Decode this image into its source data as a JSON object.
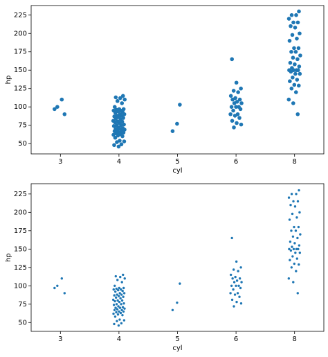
{
  "chart_data": [
    {
      "type": "strip",
      "x_label": "cyl",
      "y_label": "hp",
      "color": "#1f77b4",
      "marker_radius": 2.8,
      "categories": [
        3,
        4,
        5,
        6,
        8
      ],
      "x": [
        3,
        3,
        3,
        3,
        4,
        4,
        4,
        4,
        4,
        4,
        4,
        4,
        4,
        4,
        4,
        4,
        4,
        4,
        4,
        4,
        4,
        4,
        4,
        4,
        4,
        4,
        4,
        4,
        4,
        4,
        4,
        4,
        4,
        4,
        4,
        4,
        4,
        4,
        4,
        4,
        4,
        4,
        4,
        4,
        4,
        4,
        4,
        4,
        4,
        4,
        4,
        4,
        4,
        4,
        4,
        4,
        4,
        4,
        4,
        5,
        5,
        5,
        6,
        6,
        6,
        6,
        6,
        6,
        6,
        6,
        6,
        6,
        6,
        6,
        6,
        6,
        6,
        6,
        6,
        6,
        6,
        6,
        6,
        6,
        6,
        6,
        6,
        8,
        8,
        8,
        8,
        8,
        8,
        8,
        8,
        8,
        8,
        8,
        8,
        8,
        8,
        8,
        8,
        8,
        8,
        8,
        8,
        8,
        8,
        8,
        8,
        8,
        8,
        8,
        8,
        8,
        8,
        8,
        8,
        8,
        8,
        8,
        8,
        8,
        8,
        8,
        8
      ],
      "values": [
        97,
        110,
        100,
        90,
        46,
        48,
        49,
        52,
        53,
        54,
        58,
        60,
        61,
        62,
        63,
        64,
        65,
        65,
        67,
        67,
        68,
        69,
        70,
        70,
        71,
        72,
        74,
        75,
        75,
        76,
        78,
        79,
        80,
        80,
        81,
        83,
        84,
        85,
        86,
        87,
        88,
        88,
        90,
        90,
        92,
        93,
        94,
        95,
        95,
        96,
        97,
        97,
        100,
        105,
        108,
        110,
        112,
        113,
        115,
        77,
        67,
        103,
        72,
        76,
        78,
        81,
        85,
        88,
        90,
        90,
        95,
        97,
        100,
        100,
        100,
        105,
        105,
        107,
        110,
        110,
        112,
        115,
        120,
        122,
        125,
        133,
        165,
        90,
        105,
        110,
        120,
        125,
        129,
        130,
        135,
        137,
        140,
        145,
        145,
        148,
        150,
        150,
        150,
        150,
        153,
        155,
        158,
        160,
        165,
        167,
        170,
        175,
        175,
        180,
        180,
        190,
        193,
        198,
        200,
        208,
        210,
        215,
        215,
        220,
        225,
        225,
        230
      ],
      "ylim": [
        36,
        238
      ],
      "yticks": [
        50,
        75,
        100,
        125,
        150,
        175,
        200,
        225
      ]
    },
    {
      "type": "strip",
      "x_label": "cyl",
      "y_label": "hp",
      "color": "#1f77b4",
      "marker_radius": 1.7,
      "categories": [
        3,
        4,
        5,
        6,
        8
      ],
      "x": [
        3,
        3,
        3,
        3,
        4,
        4,
        4,
        4,
        4,
        4,
        4,
        4,
        4,
        4,
        4,
        4,
        4,
        4,
        4,
        4,
        4,
        4,
        4,
        4,
        4,
        4,
        4,
        4,
        4,
        4,
        4,
        4,
        4,
        4,
        4,
        4,
        4,
        4,
        4,
        4,
        4,
        4,
        4,
        4,
        4,
        4,
        4,
        4,
        4,
        4,
        4,
        4,
        4,
        4,
        4,
        4,
        4,
        4,
        4,
        5,
        5,
        5,
        6,
        6,
        6,
        6,
        6,
        6,
        6,
        6,
        6,
        6,
        6,
        6,
        6,
        6,
        6,
        6,
        6,
        6,
        6,
        6,
        6,
        6,
        6,
        6,
        6,
        8,
        8,
        8,
        8,
        8,
        8,
        8,
        8,
        8,
        8,
        8,
        8,
        8,
        8,
        8,
        8,
        8,
        8,
        8,
        8,
        8,
        8,
        8,
        8,
        8,
        8,
        8,
        8,
        8,
        8,
        8,
        8,
        8,
        8,
        8,
        8,
        8,
        8,
        8,
        8
      ],
      "values": [
        97,
        110,
        100,
        90,
        46,
        48,
        49,
        52,
        53,
        54,
        58,
        60,
        61,
        62,
        63,
        64,
        65,
        65,
        67,
        67,
        68,
        69,
        70,
        70,
        71,
        72,
        74,
        75,
        75,
        76,
        78,
        79,
        80,
        80,
        81,
        83,
        84,
        85,
        86,
        87,
        88,
        88,
        90,
        90,
        92,
        93,
        94,
        95,
        95,
        96,
        97,
        97,
        100,
        105,
        108,
        110,
        112,
        113,
        115,
        77,
        67,
        103,
        72,
        76,
        78,
        81,
        85,
        88,
        90,
        90,
        95,
        97,
        100,
        100,
        100,
        105,
        105,
        107,
        110,
        110,
        112,
        115,
        120,
        122,
        125,
        133,
        165,
        90,
        105,
        110,
        120,
        125,
        129,
        130,
        135,
        137,
        140,
        145,
        145,
        148,
        150,
        150,
        150,
        150,
        153,
        155,
        158,
        160,
        165,
        167,
        170,
        175,
        175,
        180,
        180,
        190,
        193,
        198,
        200,
        208,
        210,
        215,
        215,
        220,
        225,
        225,
        230
      ],
      "ylim": [
        38,
        239
      ],
      "yticks": [
        50,
        75,
        100,
        125,
        150,
        175,
        200,
        225
      ]
    }
  ]
}
